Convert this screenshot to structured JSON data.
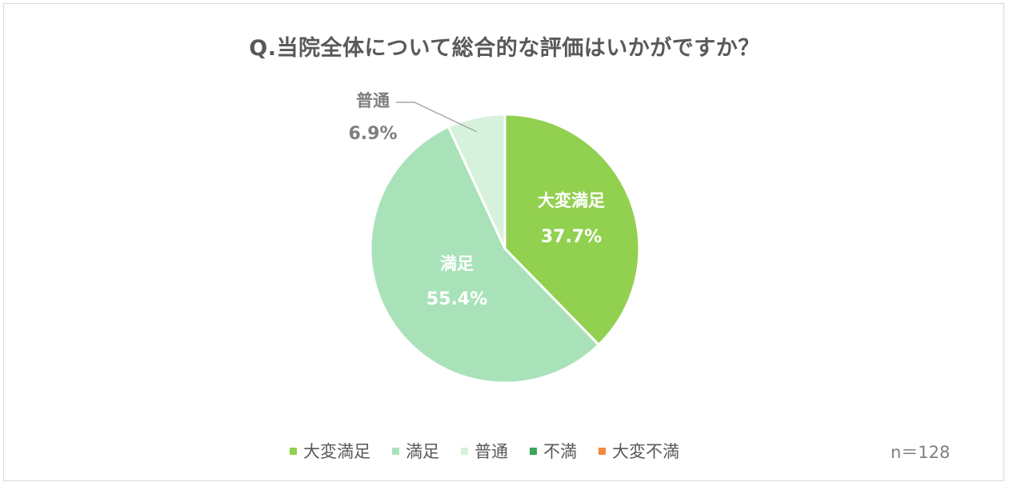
{
  "chart_data": {
    "type": "pie",
    "title": "Q.当院全体について総合的な評価はいかがですか？",
    "categories": [
      "大変満足",
      "満足",
      "普通",
      "不満",
      "大変不満"
    ],
    "values": [
      37.7,
      55.4,
      6.9,
      0,
      0
    ],
    "value_labels": [
      "37.7%",
      "55.4%",
      "6.9%",
      "",
      ""
    ],
    "colors": [
      "#92d050",
      "#a9e2b9",
      "#d6f1dc",
      "#3aa65a",
      "#f28a3c"
    ],
    "legend_position": "bottom",
    "legend": [
      {
        "label": "大変満足",
        "color": "#92d050"
      },
      {
        "label": "満足",
        "color": "#a9e2b9"
      },
      {
        "label": "普通",
        "color": "#d6f1dc"
      },
      {
        "label": "不満",
        "color": "#3aa65a"
      },
      {
        "label": "大変不満",
        "color": "#f28a3c"
      }
    ],
    "sample_size": "n＝128"
  }
}
